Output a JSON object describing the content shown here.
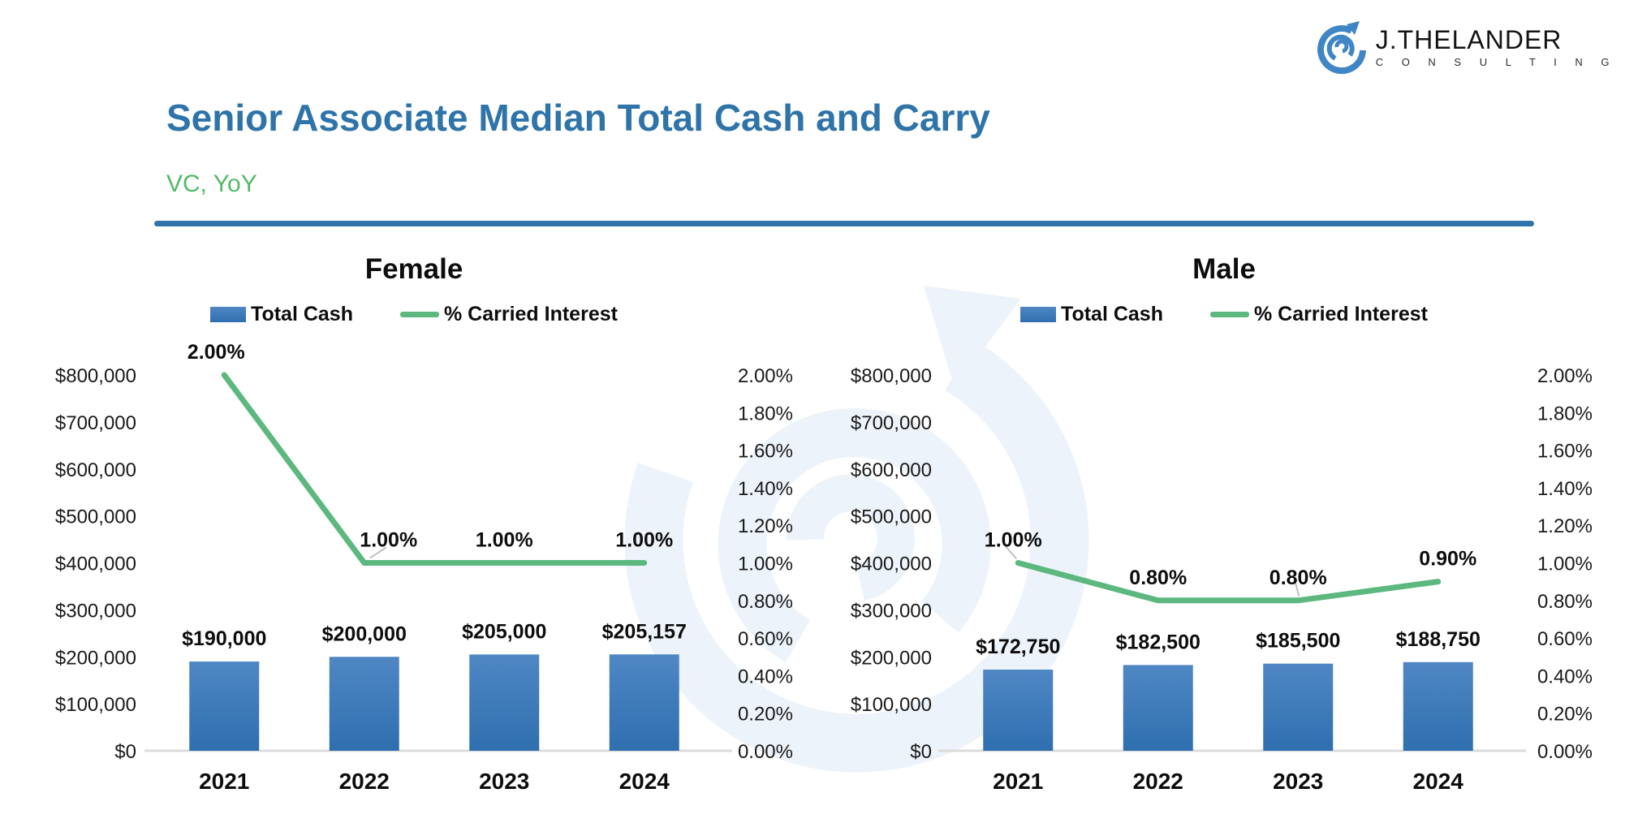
{
  "logo": {
    "name": "J.THELANDER",
    "subname": "C O N S U L T I N G"
  },
  "header": {
    "title": "Senior Associate Median Total Cash and Carry",
    "subtitle": "VC, YoY"
  },
  "colors": {
    "title": "#2E74A9",
    "subtitle": "#53B966",
    "divider": "#2E73A9",
    "bar_top": "#4F87C4",
    "bar_bottom": "#2F6FAF",
    "line": "#5CB87E",
    "axis_text": "#1A1A1A",
    "baseline": "#DBDBDB",
    "leader": "#C0C0C0",
    "watermark": "#EDF3FA",
    "logo_blue": "#3F86C6"
  },
  "chart_data": [
    {
      "type": "bar+line",
      "title": "Female",
      "categories": [
        "2021",
        "2022",
        "2023",
        "2024"
      ],
      "series": [
        {
          "name": "Total Cash",
          "type": "bar",
          "values": [
            190000,
            200000,
            205000,
            205157
          ],
          "value_labels": [
            "$190,000",
            "$200,000",
            "$205,000",
            "$205,157"
          ]
        },
        {
          "name": "% Carried Interest",
          "type": "line",
          "values": [
            2.0,
            1.0,
            1.0,
            1.0
          ],
          "value_labels": [
            "2.00%",
            "1.00%",
            "1.00%",
            "1.00%"
          ]
        }
      ],
      "left_axis": {
        "min": 0,
        "max": 800000,
        "tick_labels": [
          "$800,000",
          "$700,000",
          "$600,000",
          "$500,000",
          "$400,000",
          "$300,000",
          "$200,000",
          "$100,000",
          "$0"
        ]
      },
      "right_axis": {
        "min": 0,
        "max": 2.0,
        "tick_labels": [
          "2.00%",
          "1.80%",
          "1.60%",
          "1.40%",
          "1.20%",
          "1.00%",
          "0.80%",
          "0.60%",
          "0.40%",
          "0.20%",
          "0.00%"
        ]
      },
      "legend_position": "top",
      "grid": false
    },
    {
      "type": "bar+line",
      "title": "Male",
      "categories": [
        "2021",
        "2022",
        "2023",
        "2024"
      ],
      "series": [
        {
          "name": "Total Cash",
          "type": "bar",
          "values": [
            172750,
            182500,
            185500,
            188750
          ],
          "value_labels": [
            "$172,750",
            "$182,500",
            "$185,500",
            "$188,750"
          ]
        },
        {
          "name": "% Carried Interest",
          "type": "line",
          "values": [
            1.0,
            0.8,
            0.8,
            0.9
          ],
          "value_labels": [
            "1.00%",
            "0.80%",
            "0.80%",
            "0.90%"
          ]
        }
      ],
      "left_axis": {
        "min": 0,
        "max": 800000,
        "tick_labels": [
          "$800,000",
          "$700,000",
          "$600,000",
          "$500,000",
          "$400,000",
          "$300,000",
          "$200,000",
          "$100,000",
          "$0"
        ]
      },
      "right_axis": {
        "min": 0,
        "max": 2.0,
        "tick_labels": [
          "2.00%",
          "1.80%",
          "1.60%",
          "1.40%",
          "1.20%",
          "1.00%",
          "0.80%",
          "0.60%",
          "0.40%",
          "0.20%",
          "0.00%"
        ]
      },
      "legend_position": "top",
      "grid": false
    }
  ]
}
